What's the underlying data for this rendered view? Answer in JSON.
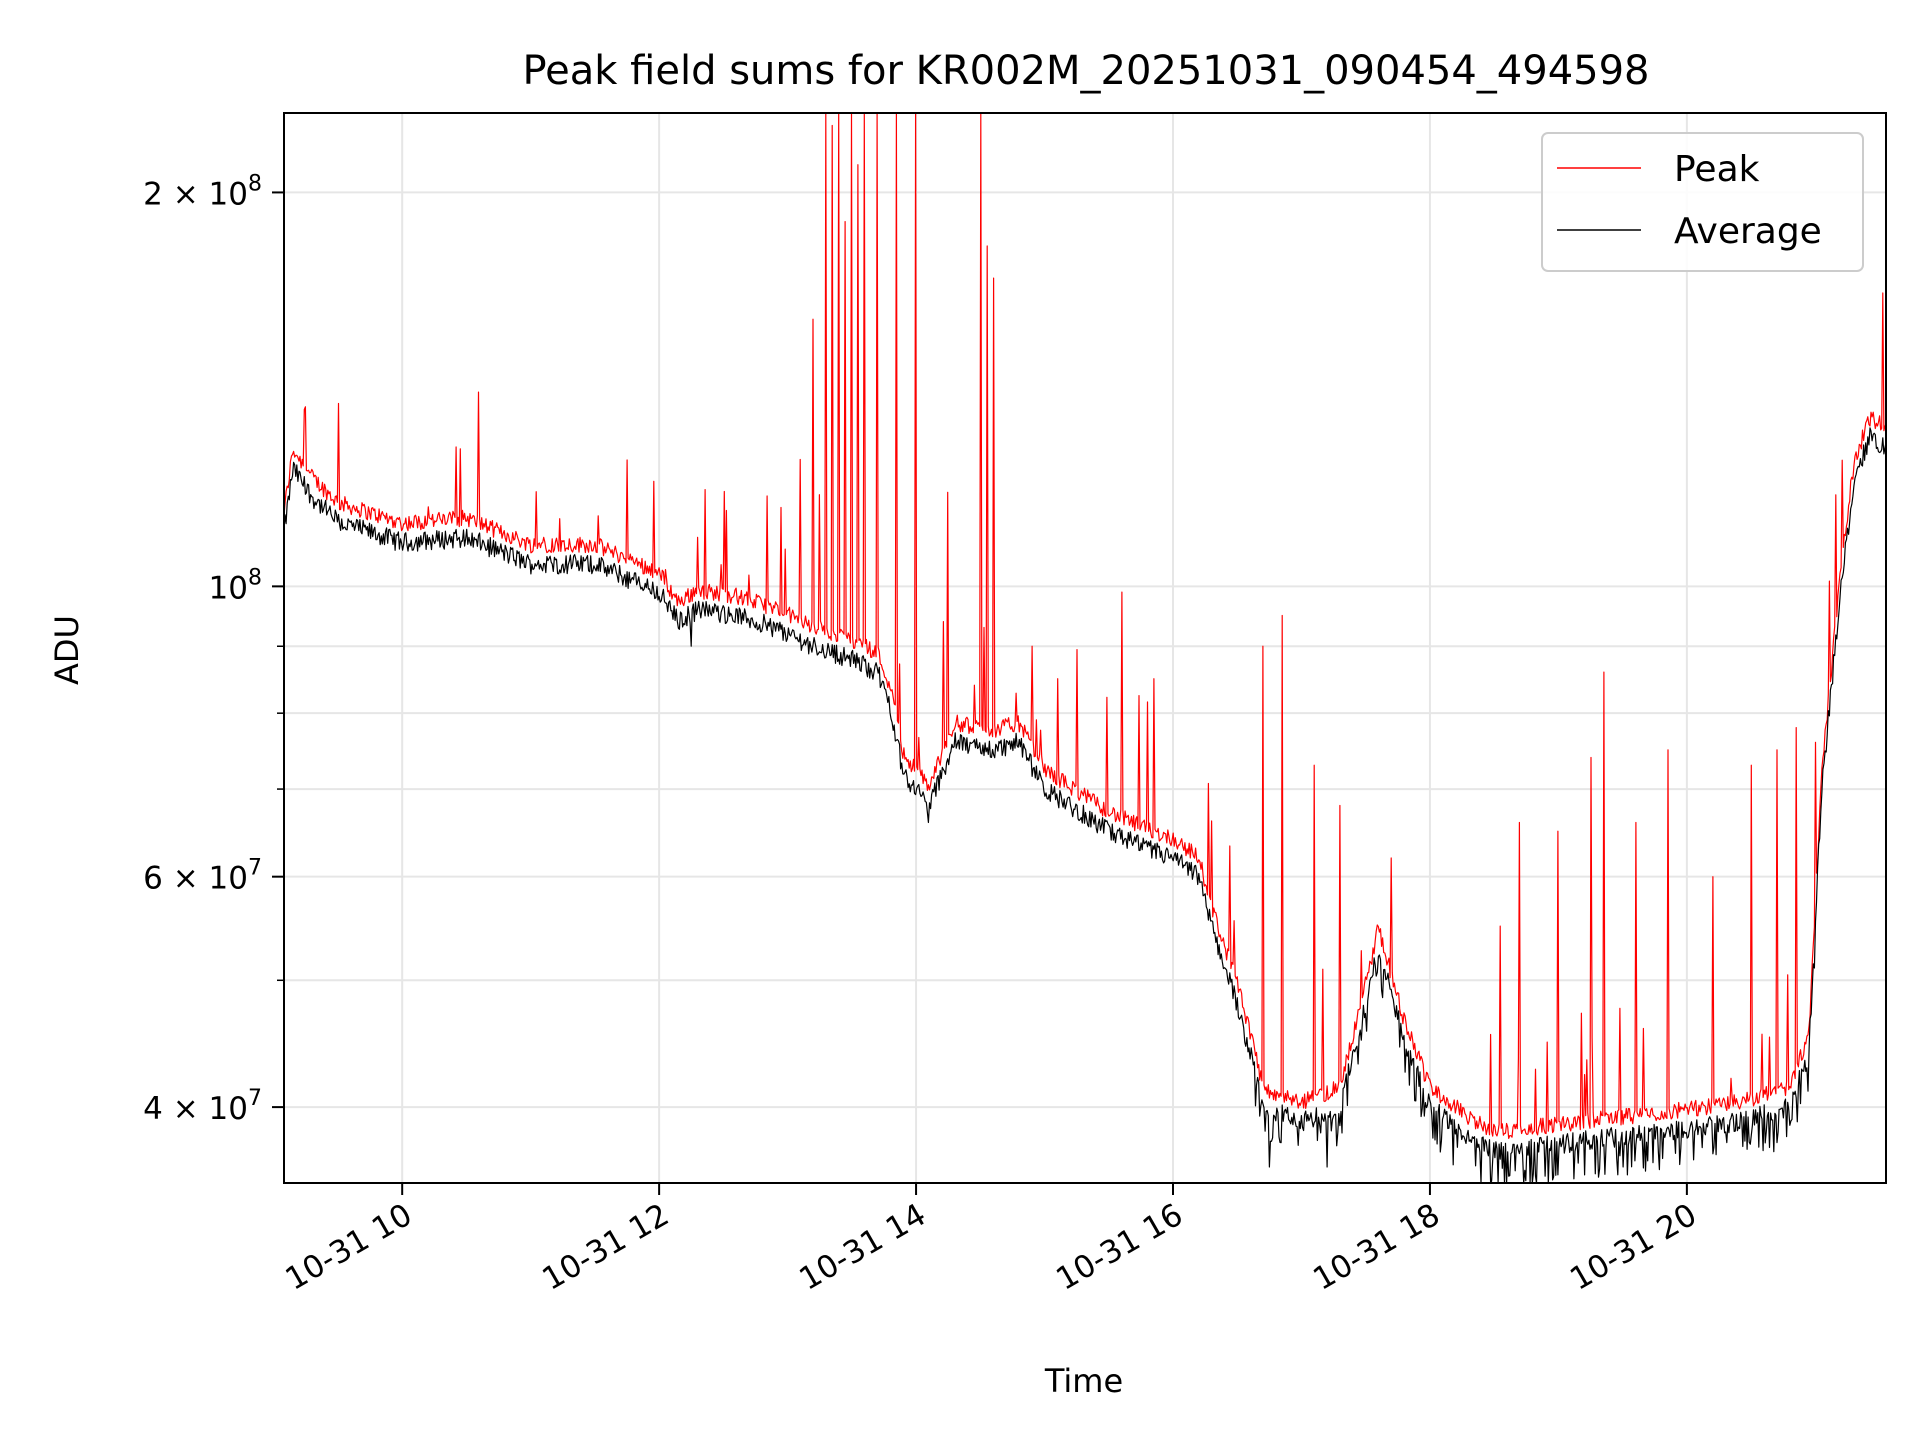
{
  "chart_data": {
    "type": "line",
    "title": "Peak field sums for KR002M_20251031_090454_494598",
    "xlabel": "Time",
    "ylabel": "ADU",
    "yscale": "log",
    "xlim_hours": [
      9.08,
      21.55
    ],
    "ylim": [
      35000000,
      230000000
    ],
    "grid": true,
    "legend_position": "top-right",
    "x_ticks": [
      {
        "hour": 10,
        "label": "10-31 10"
      },
      {
        "hour": 12,
        "label": "10-31 12"
      },
      {
        "hour": 14,
        "label": "10-31 14"
      },
      {
        "hour": 16,
        "label": "10-31 16"
      },
      {
        "hour": 18,
        "label": "10-31 18"
      },
      {
        "hour": 20,
        "label": "10-31 20"
      }
    ],
    "y_major_ticks": [
      {
        "value": 40000000,
        "mantissa": "4",
        "exp": "7"
      },
      {
        "value": 60000000,
        "mantissa": "6",
        "exp": "7"
      },
      {
        "value": 100000000,
        "mantissa": "",
        "exp": "8"
      },
      {
        "value": 200000000,
        "mantissa": "2",
        "exp": "8"
      }
    ],
    "y_minor_grid": [
      50000000,
      70000000,
      80000000,
      90000000
    ],
    "series": [
      {
        "name": "Peak",
        "color": "#ff0000"
      },
      {
        "name": "Average",
        "color": "#000000"
      }
    ],
    "baseline": {
      "hours": [
        9.08,
        9.15,
        9.3,
        9.5,
        10.0,
        10.5,
        11.0,
        11.5,
        12.0,
        12.15,
        12.3,
        12.6,
        12.9,
        13.2,
        13.5,
        13.7,
        13.8,
        13.9,
        14.1,
        14.3,
        14.6,
        14.8,
        15.0,
        15.5,
        15.8,
        16.0,
        16.2,
        16.3,
        16.5,
        16.6,
        16.7,
        17.0,
        17.3,
        17.5,
        17.6,
        17.8,
        18.0,
        18.3,
        18.5,
        19.0,
        19.5,
        20.0,
        20.4,
        20.8,
        20.95,
        21.05,
        21.2,
        21.3,
        21.42,
        21.55
      ],
      "values": [
        110000000,
        123000000,
        117000000,
        112000000,
        108000000,
        109000000,
        104000000,
        104000000,
        99000000,
        94000000,
        96000000,
        95000000,
        93000000,
        90000000,
        88000000,
        86000000,
        81000000,
        72000000,
        68000000,
        76000000,
        75000000,
        76000000,
        70000000,
        65000000,
        63000000,
        62000000,
        60000000,
        55000000,
        48000000,
        44000000,
        40000000,
        39000000,
        40000000,
        48000000,
        53000000,
        45000000,
        40000000,
        38000000,
        37000000,
        37500000,
        38000000,
        38500000,
        39000000,
        40000000,
        44000000,
        70000000,
        100000000,
        120000000,
        130000000,
        128000000
      ]
    },
    "peak_spikes": [
      {
        "hour": 9.7,
        "value": 112000000
      },
      {
        "hour": 10.2,
        "value": 115000000
      },
      {
        "hour": 11.1,
        "value": 109000000
      },
      {
        "hour": 11.6,
        "value": 107000000
      },
      {
        "hour": 12.05,
        "value": 103000000
      },
      {
        "hour": 12.3,
        "value": 109000000
      },
      {
        "hour": 12.7,
        "value": 102000000
      },
      {
        "hour": 13.1,
        "value": 125000000
      },
      {
        "hour": 13.2,
        "value": 160000000
      },
      {
        "hour": 13.3,
        "value": 230000000
      },
      {
        "hour": 13.35,
        "value": 225000000
      },
      {
        "hour": 13.4,
        "value": 230000000
      },
      {
        "hour": 13.45,
        "value": 190000000
      },
      {
        "hour": 13.5,
        "value": 230000000
      },
      {
        "hour": 13.55,
        "value": 210000000
      },
      {
        "hour": 13.6,
        "value": 230000000
      },
      {
        "hour": 13.7,
        "value": 230000000
      },
      {
        "hour": 13.85,
        "value": 230000000
      },
      {
        "hour": 14.0,
        "value": 230000000
      },
      {
        "hour": 14.25,
        "value": 118000000
      },
      {
        "hour": 14.5,
        "value": 230000000
      },
      {
        "hour": 14.55,
        "value": 182000000
      },
      {
        "hour": 14.6,
        "value": 172000000
      },
      {
        "hour": 14.9,
        "value": 90000000
      },
      {
        "hour": 15.1,
        "value": 85000000
      },
      {
        "hour": 15.6,
        "value": 99000000
      },
      {
        "hour": 15.85,
        "value": 85000000
      },
      {
        "hour": 16.7,
        "value": 90000000
      },
      {
        "hour": 16.85,
        "value": 95000000
      },
      {
        "hour": 17.1,
        "value": 73000000
      },
      {
        "hour": 17.3,
        "value": 68000000
      },
      {
        "hour": 17.7,
        "value": 62000000
      },
      {
        "hour": 18.55,
        "value": 55000000
      },
      {
        "hour": 18.7,
        "value": 66000000
      },
      {
        "hour": 19.0,
        "value": 65000000
      },
      {
        "hour": 19.25,
        "value": 74000000
      },
      {
        "hour": 19.35,
        "value": 86000000
      },
      {
        "hour": 19.6,
        "value": 66000000
      },
      {
        "hour": 19.85,
        "value": 75000000
      },
      {
        "hour": 20.2,
        "value": 60000000
      },
      {
        "hour": 20.5,
        "value": 73000000
      },
      {
        "hour": 20.7,
        "value": 75000000
      },
      {
        "hour": 20.85,
        "value": 78000000
      },
      {
        "hour": 21.0,
        "value": 76000000
      }
    ],
    "average_dips": [
      {
        "hour": 12.25,
        "value": 90000000
      },
      {
        "hour": 14.1,
        "value": 66000000
      },
      {
        "hour": 16.75,
        "value": 36000000
      },
      {
        "hour": 17.2,
        "value": 36000000
      },
      {
        "hour": 18.4,
        "value": 35000000
      },
      {
        "hour": 18.6,
        "value": 35000000
      },
      {
        "hour": 18.8,
        "value": 35000000
      },
      {
        "hour": 19.0,
        "value": 35500000
      },
      {
        "hour": 19.2,
        "value": 35500000
      }
    ]
  }
}
